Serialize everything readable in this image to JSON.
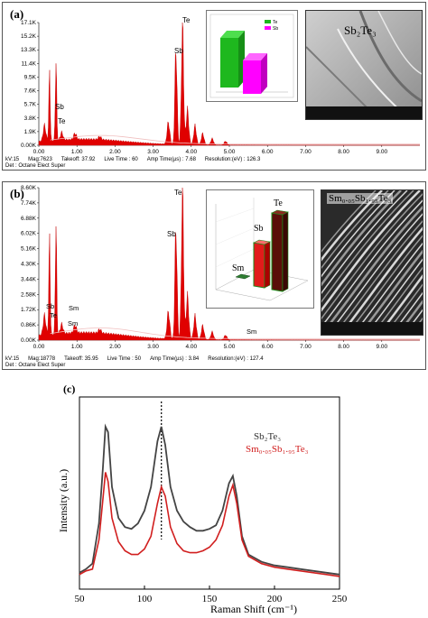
{
  "panel_a": {
    "label": "(a)",
    "y_ticks": [
      "0.00K",
      "1.9K",
      "3.8K",
      "5.7K",
      "7.6K",
      "9.5K",
      "11.4K",
      "13.3K",
      "15.2K",
      "17.1K"
    ],
    "x_ticks": [
      "0.00",
      "1.00",
      "2.00",
      "3.00",
      "4.00",
      "5.00",
      "6.00",
      "7.00",
      "8.00",
      "9.00"
    ],
    "peak_labels": {
      "sb_major": "Sb",
      "te_major": "Te",
      "sb_low": "Sb",
      "te_low": "Te"
    },
    "footer_line1": [
      "kV:15",
      "Mag:7623",
      "Takeoff: 37.92",
      "Live Time : 60",
      "Amp Time(µs) : 7.68",
      "Resolution:(eV) : 126.3"
    ],
    "footer_line2": "Det : Octane Elect Super",
    "inset_legend": [
      "Te",
      "Sb"
    ],
    "sem_label": "Sb₂Te₃"
  },
  "panel_b": {
    "label": "(b)",
    "y_ticks": [
      "0.00K",
      "0.86K",
      "1.72K",
      "2.58K",
      "3.44K",
      "4.30K",
      "5.16K",
      "6.02K",
      "6.88K",
      "7.74K",
      "8.60K"
    ],
    "x_ticks": [
      "0.00",
      "1.00",
      "2.00",
      "3.00",
      "4.00",
      "5.00",
      "6.00",
      "7.00",
      "8.00",
      "9.00"
    ],
    "peak_labels": {
      "te_major": "Te",
      "sb_major": "Sb",
      "sb_low": "Sb",
      "te_low": "Te",
      "sm1": "Sm",
      "sm2": "Sm",
      "sm3": "Sm"
    },
    "footer_line1": [
      "kV:15",
      "Mag:18778",
      "Takeoff: 35.95",
      "Live Time : 50",
      "Amp Time(µs) : 3.84",
      "Resolution:(eV) : 127.4"
    ],
    "footer_line2": "Det : Octane Elect Super",
    "bar3d_labels": [
      "Sm",
      "Sb",
      "Te"
    ],
    "sem_label": "Sm₀.₀₅Sb₁.₉₅Te₃"
  },
  "panel_c": {
    "label": "(c)",
    "legend": [
      "Sb₂Te₃",
      "Sm₀.₀₅Sb₁.₉₅Te₃"
    ]
  },
  "chart_data": [
    {
      "type": "line",
      "title": "(a)",
      "ylim": [
        0,
        17100
      ],
      "xlim": [
        0,
        10
      ],
      "peaks": [
        {
          "label": "Te",
          "x": 0.28,
          "y": 9000
        },
        {
          "label": "Sb",
          "x": 0.45,
          "y": 11300
        },
        {
          "label": "Sb",
          "x": 3.6,
          "y": 13300
        },
        {
          "label": "Te",
          "x": 3.77,
          "y": 16700
        }
      ],
      "inset": {
        "type": "bar",
        "categories": [
          "Te",
          "Sb"
        ],
        "colors": [
          "#20c020",
          "#ff00ff"
        ]
      }
    },
    {
      "type": "line",
      "title": "(b)",
      "ylim": [
        0,
        8600
      ],
      "xlim": [
        0,
        10
      ],
      "peaks": [
        {
          "label": "Te",
          "x": 0.28,
          "y": 5200
        },
        {
          "label": "Sb",
          "x": 0.45,
          "y": 6400
        },
        {
          "label": "Sb",
          "x": 3.6,
          "y": 6300
        },
        {
          "label": "Te",
          "x": 3.77,
          "y": 8300
        }
      ],
      "inset": {
        "type": "bar",
        "categories": [
          "Sm",
          "Sb",
          "Te"
        ],
        "colors": [
          "#2e7d32",
          "#e21b1b",
          "#5a0e08"
        ]
      }
    },
    {
      "type": "line",
      "xlabel": "Raman Shift (cm⁻¹)",
      "ylabel": "Intensity (a.u.)",
      "xlim": [
        50,
        250
      ],
      "x_ticks": [
        50,
        100,
        150,
        200,
        250
      ],
      "dashed_line_x": 113,
      "series": [
        {
          "name": "Sb₂Te₃",
          "color": "#444444",
          "points": [
            [
              50,
              0.08
            ],
            [
              55,
              0.1
            ],
            [
              60,
              0.13
            ],
            [
              65,
              0.35
            ],
            [
              68,
              0.65
            ],
            [
              70,
              0.88
            ],
            [
              72,
              0.85
            ],
            [
              75,
              0.55
            ],
            [
              80,
              0.38
            ],
            [
              85,
              0.33
            ],
            [
              90,
              0.32
            ],
            [
              95,
              0.35
            ],
            [
              100,
              0.42
            ],
            [
              105,
              0.55
            ],
            [
              110,
              0.8
            ],
            [
              113,
              0.88
            ],
            [
              116,
              0.78
            ],
            [
              120,
              0.55
            ],
            [
              125,
              0.42
            ],
            [
              130,
              0.36
            ],
            [
              135,
              0.33
            ],
            [
              140,
              0.31
            ],
            [
              145,
              0.31
            ],
            [
              150,
              0.32
            ],
            [
              155,
              0.34
            ],
            [
              160,
              0.42
            ],
            [
              165,
              0.57
            ],
            [
              168,
              0.61
            ],
            [
              171,
              0.5
            ],
            [
              175,
              0.28
            ],
            [
              180,
              0.18
            ],
            [
              190,
              0.14
            ],
            [
              200,
              0.12
            ],
            [
              210,
              0.11
            ],
            [
              220,
              0.1
            ],
            [
              230,
              0.09
            ],
            [
              240,
              0.08
            ],
            [
              250,
              0.07
            ]
          ]
        },
        {
          "name": "Sm₀.₀₅Sb₁.₉₅Te₃",
          "color": "#d11f1f",
          "points": [
            [
              50,
              0.07
            ],
            [
              55,
              0.09
            ],
            [
              60,
              0.1
            ],
            [
              65,
              0.26
            ],
            [
              68,
              0.48
            ],
            [
              70,
              0.63
            ],
            [
              72,
              0.58
            ],
            [
              75,
              0.38
            ],
            [
              80,
              0.25
            ],
            [
              85,
              0.2
            ],
            [
              90,
              0.18
            ],
            [
              95,
              0.18
            ],
            [
              100,
              0.21
            ],
            [
              105,
              0.28
            ],
            [
              110,
              0.46
            ],
            [
              113,
              0.55
            ],
            [
              116,
              0.5
            ],
            [
              120,
              0.33
            ],
            [
              125,
              0.24
            ],
            [
              130,
              0.2
            ],
            [
              135,
              0.19
            ],
            [
              140,
              0.19
            ],
            [
              145,
              0.2
            ],
            [
              150,
              0.22
            ],
            [
              155,
              0.26
            ],
            [
              160,
              0.34
            ],
            [
              165,
              0.5
            ],
            [
              168,
              0.56
            ],
            [
              171,
              0.46
            ],
            [
              175,
              0.26
            ],
            [
              180,
              0.17
            ],
            [
              190,
              0.13
            ],
            [
              200,
              0.11
            ],
            [
              210,
              0.1
            ],
            [
              220,
              0.09
            ],
            [
              230,
              0.08
            ],
            [
              240,
              0.07
            ],
            [
              250,
              0.06
            ]
          ]
        }
      ]
    }
  ]
}
